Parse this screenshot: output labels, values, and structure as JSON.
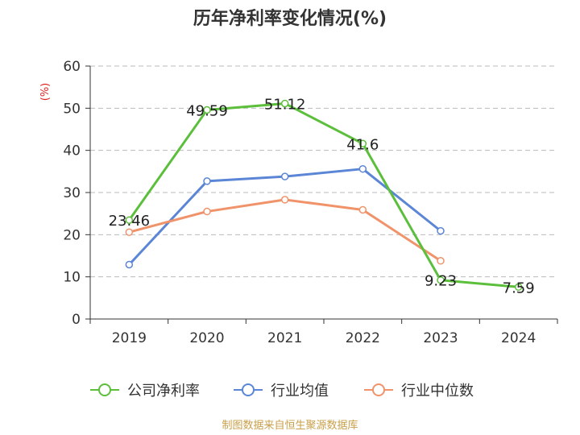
{
  "chart_data": {
    "type": "line",
    "title": "历年净利率变化情况(%)",
    "ylabel": "(%)",
    "xlabel": "",
    "categories": [
      "2019",
      "2020",
      "2021",
      "2022",
      "2023",
      "2024"
    ],
    "ylim": [
      0,
      60
    ],
    "yticks": [
      0,
      10,
      20,
      30,
      40,
      50,
      60
    ],
    "grid": true,
    "legend_position": "bottom",
    "series": [
      {
        "name": "公司净利率",
        "color": "#5cbf3c",
        "values": [
          23.46,
          49.59,
          51.12,
          41.6,
          9.23,
          7.59
        ],
        "labels": [
          "23.46",
          "49.59",
          "51.12",
          "41.6",
          "9.23",
          "7.59"
        ]
      },
      {
        "name": "行业均值",
        "color": "#5b86d6",
        "values": [
          12.9,
          32.7,
          33.8,
          35.6,
          20.9,
          null
        ]
      },
      {
        "name": "行业中位数",
        "color": "#f0936a",
        "values": [
          20.6,
          25.5,
          28.3,
          25.9,
          13.8,
          null
        ]
      }
    ]
  },
  "footer": {
    "source": "制图数据来自恒生聚源数据库"
  }
}
